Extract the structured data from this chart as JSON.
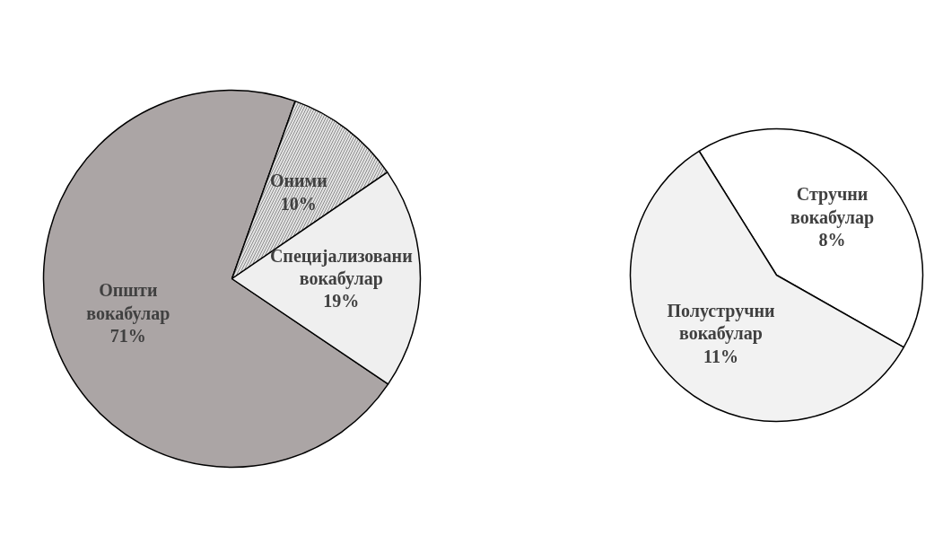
{
  "chart_data": [
    {
      "type": "pie",
      "categories": [
        "Општи вокабулар",
        "Оними",
        "Специјализовани вокабулар"
      ],
      "values": [
        71,
        10,
        19
      ],
      "value_labels": [
        "71%",
        "10%",
        "19%"
      ],
      "colors": [
        "#aba5a5",
        "#e4e4e4",
        "#efefef"
      ]
    },
    {
      "type": "pie",
      "categories": [
        "Стручни вокабулар",
        "Полустручни вокабулар"
      ],
      "values": [
        8,
        11
      ],
      "value_labels": [
        "8%",
        "11%"
      ],
      "colors": [
        "#ffffff",
        "#f2f2f2"
      ]
    }
  ]
}
